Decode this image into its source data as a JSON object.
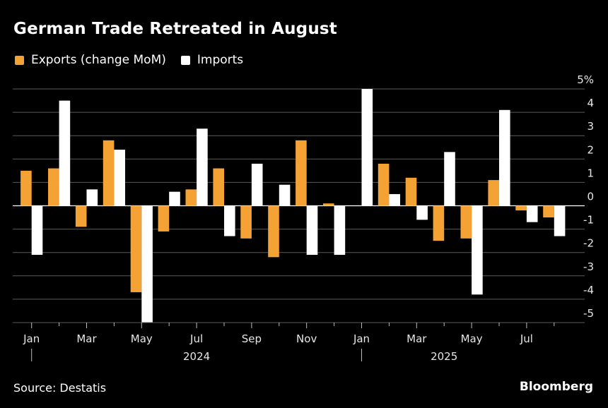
{
  "title": "German Trade Retreated in August",
  "legend": [
    {
      "label": "Exports (change MoM)",
      "color": "#f4a233"
    },
    {
      "label": "Imports",
      "color": "#ffffff"
    }
  ],
  "footer": {
    "source": "Source: Destatis",
    "brand": "Bloomberg"
  },
  "chart_data": {
    "type": "bar",
    "title": "German Trade Retreated in August",
    "xlabel": "",
    "ylabel": "",
    "y_unit_suffix": "%",
    "ylim": [
      -5,
      5
    ],
    "yticks": [
      5,
      4,
      3,
      2,
      1,
      0,
      -1,
      -2,
      -3,
      -4,
      -5
    ],
    "ytick_labels": [
      "5%",
      "4",
      "3",
      "2",
      "1",
      "0",
      "-1",
      "-2",
      "-3",
      "-4",
      "-5"
    ],
    "grid": true,
    "legend_position": "top-left",
    "categories": [
      "Jan 2024",
      "Feb 2024",
      "Mar 2024",
      "Apr 2024",
      "May 2024",
      "Jun 2024",
      "Jul 2024",
      "Aug 2024",
      "Sep 2024",
      "Oct 2024",
      "Nov 2024",
      "Dec 2024",
      "Jan 2025",
      "Feb 2025",
      "Mar 2025",
      "Apr 2025",
      "May 2025",
      "Jun 2025",
      "Jul 2025",
      "Aug 2025"
    ],
    "xtick_labels": [
      {
        "index": 0,
        "label": "Jan"
      },
      {
        "index": 2,
        "label": "Mar"
      },
      {
        "index": 4,
        "label": "May"
      },
      {
        "index": 6,
        "label": "Jul"
      },
      {
        "index": 8,
        "label": "Sep"
      },
      {
        "index": 10,
        "label": "Nov"
      },
      {
        "index": 12,
        "label": "Jan"
      },
      {
        "index": 14,
        "label": "Mar"
      },
      {
        "index": 16,
        "label": "May"
      },
      {
        "index": 18,
        "label": "Jul"
      }
    ],
    "year_labels": [
      {
        "label": "2024",
        "center_index": 6,
        "divider_index": 0
      },
      {
        "label": "2025",
        "center_index": 15,
        "divider_index": 12
      }
    ],
    "series": [
      {
        "name": "Exports (change MoM)",
        "color": "#f4a233",
        "values": [
          1.5,
          1.6,
          -0.9,
          2.8,
          -3.7,
          -1.1,
          0.7,
          1.6,
          -1.4,
          -2.2,
          2.8,
          0.1,
          0.0,
          1.8,
          1.2,
          -1.5,
          -1.4,
          1.1,
          -0.2,
          -0.5
        ]
      },
      {
        "name": "Imports",
        "color": "#ffffff",
        "values": [
          -2.1,
          4.5,
          0.7,
          2.4,
          -5.0,
          0.6,
          3.3,
          -1.3,
          1.8,
          0.9,
          -2.1,
          -2.1,
          5.0,
          0.5,
          -0.6,
          2.3,
          -3.8,
          4.1,
          -0.7,
          -1.3
        ]
      }
    ]
  }
}
